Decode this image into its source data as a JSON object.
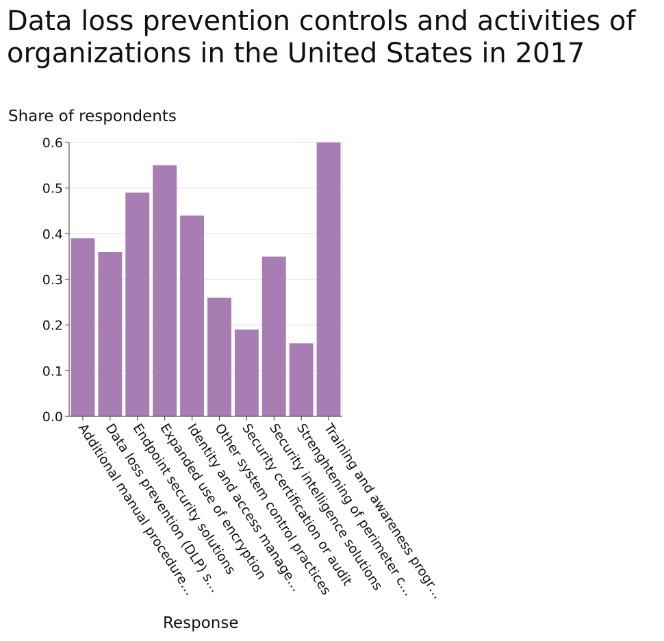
{
  "chart_data": {
    "type": "bar",
    "title": "Data loss prevention controls and activities of organizations in the United States in 2017",
    "xlabel": "Response",
    "ylabel": "Share of respondents",
    "categories": [
      "Additional manual procedure…",
      "Data loss prevention (DLP) s…",
      "Endpoint security solutions",
      "Expanded use of encryption",
      "Identity and access manage…",
      "Other system control practices",
      "Security certification or audit",
      "Security intelligence solutions",
      "Strenghtening of perimeter c…",
      "Training and awareness progr…"
    ],
    "values": [
      0.39,
      0.36,
      0.49,
      0.55,
      0.44,
      0.26,
      0.19,
      0.35,
      0.16,
      0.6
    ],
    "ylim": [
      0,
      0.6
    ],
    "yticks": [
      "0.0",
      "0.1",
      "0.2",
      "0.3",
      "0.4",
      "0.5",
      "0.6"
    ],
    "grid": true,
    "bar_color": "#a87db4",
    "grid_color": "#d9d9d9",
    "axis_color": "#333333"
  }
}
